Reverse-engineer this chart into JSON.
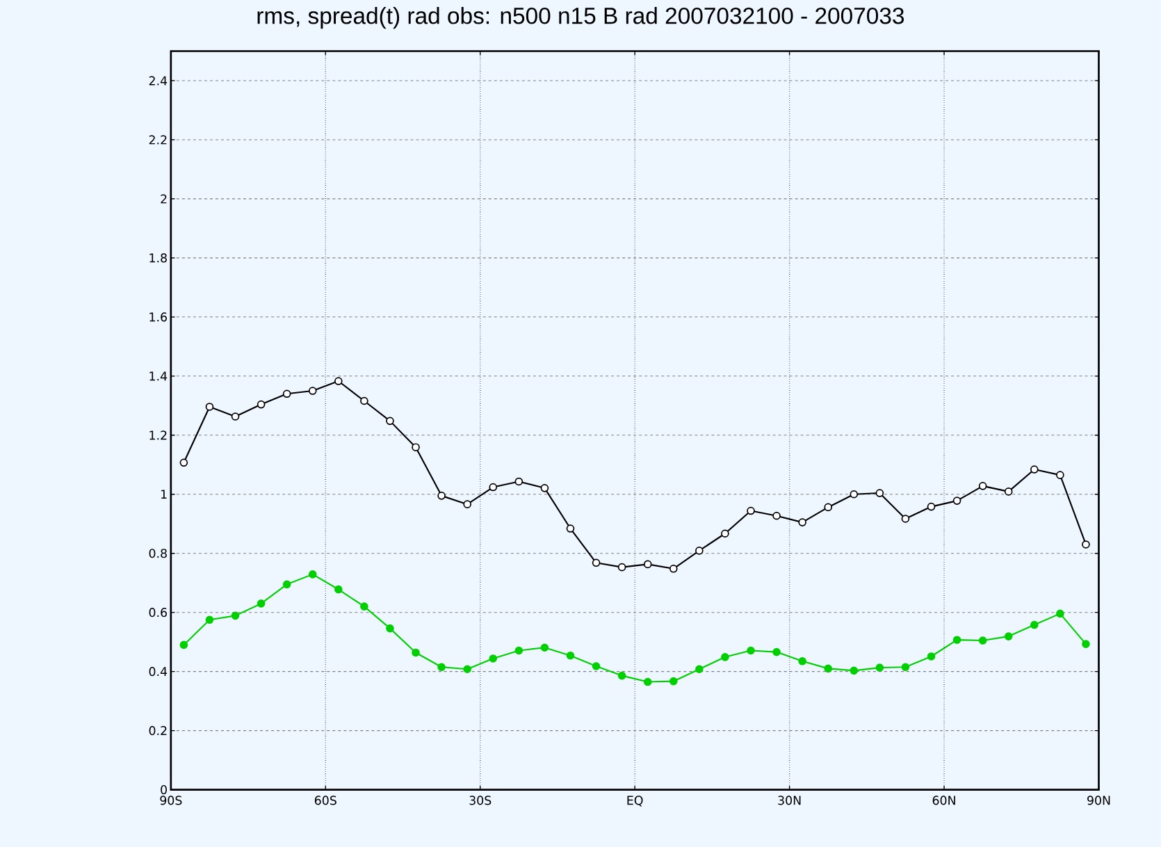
{
  "chart_data": {
    "type": "line",
    "title": "rms, spread(t) rad obs: n500 n15  B rad  2007032100 - 2007033",
    "x": [
      -87.5,
      -82.5,
      -77.5,
      -72.5,
      -67.5,
      -62.5,
      -57.5,
      -52.5,
      -47.5,
      -42.5,
      -37.5,
      -32.5,
      -27.5,
      -22.5,
      -17.5,
      -12.5,
      -7.5,
      -2.5,
      2.5,
      7.5,
      12.5,
      17.5,
      22.5,
      27.5,
      32.5,
      37.5,
      42.5,
      47.5,
      52.5,
      57.5,
      62.5,
      67.5,
      72.5,
      77.5,
      82.5,
      87.5
    ],
    "series": [
      {
        "color": "#000000",
        "values": [
          1.107,
          1.296,
          1.263,
          1.304,
          1.34,
          1.35,
          1.383,
          1.316,
          1.248,
          1.159,
          0.995,
          0.966,
          1.024,
          1.043,
          1.021,
          0.884,
          0.768,
          0.753,
          0.763,
          0.748,
          0.809,
          0.867,
          0.944,
          0.927,
          0.905,
          0.956,
          1.0,
          1.004,
          0.917,
          0.958,
          0.978,
          1.028,
          1.009,
          1.084,
          1.065,
          0.83
        ]
      },
      {
        "color": "#00d000",
        "values": [
          0.49,
          0.575,
          0.589,
          0.63,
          0.695,
          0.729,
          0.678,
          0.62,
          0.546,
          0.464,
          0.415,
          0.408,
          0.444,
          0.471,
          0.481,
          0.454,
          0.418,
          0.386,
          0.365,
          0.367,
          0.408,
          0.449,
          0.471,
          0.466,
          0.435,
          0.41,
          0.403,
          0.413,
          0.415,
          0.451,
          0.507,
          0.505,
          0.519,
          0.558,
          0.596,
          0.493
        ]
      }
    ],
    "xlim": [
      -90,
      90
    ],
    "xticks": [
      {
        "value": -90,
        "label": "90S"
      },
      {
        "value": -60,
        "label": "60S"
      },
      {
        "value": -30,
        "label": "30S"
      },
      {
        "value": 0,
        "label": "EQ"
      },
      {
        "value": 30,
        "label": "30N"
      },
      {
        "value": 60,
        "label": "60N"
      },
      {
        "value": 90,
        "label": "90N"
      }
    ],
    "ylim": [
      0,
      2.5
    ],
    "yticks": [
      0,
      0.2,
      0.4,
      0.6,
      0.8,
      1,
      1.2,
      1.4,
      1.6,
      1.8,
      2,
      2.2,
      2.4
    ],
    "grid": true,
    "marker": "circle",
    "line_style": "solid"
  }
}
